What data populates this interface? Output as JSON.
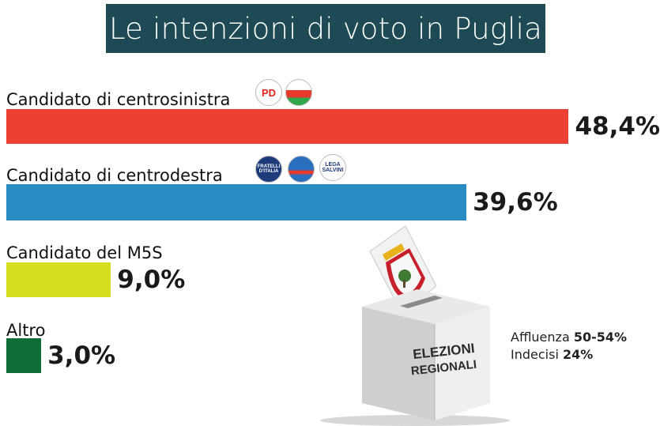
{
  "title": "Le intenzioni di voto in Puglia",
  "chart_data": {
    "type": "bar",
    "orientation": "horizontal",
    "title": "Le intenzioni di voto in Puglia",
    "categories": [
      "Candidato di centrosinistra",
      "Candidato di centrodestra",
      "Candidato del M5S",
      "Altro"
    ],
    "values": [
      48.4,
      39.6,
      9.0,
      3.0
    ],
    "value_labels": [
      "48,4%",
      "39,6%",
      "9,0%",
      "3,0%"
    ],
    "unit": "%",
    "colors": [
      "#ec4034",
      "#2a8cc4",
      "#d8df20",
      "#0f6e35"
    ]
  },
  "logos": {
    "centrosinistra": [
      {
        "icon": "pd-logo",
        "text": "PD"
      },
      {
        "icon": "coalition-logo",
        "text": ""
      }
    ],
    "centrodestra": [
      {
        "icon": "fratelli-italia-logo",
        "text": "FRATELLI D'ITALIA"
      },
      {
        "icon": "forza-italia-logo",
        "text": ""
      },
      {
        "icon": "lega-logo",
        "text": "LEGA SALVINI"
      }
    ]
  },
  "ballot_box": {
    "text_line1": "ELEZIONI",
    "text_line2": "REGIONALI"
  },
  "stats": {
    "affluenza_label": "Affluenza",
    "affluenza_value": "50-54%",
    "indecisi_label": "Indecisi",
    "indecisi_value": "24%"
  }
}
